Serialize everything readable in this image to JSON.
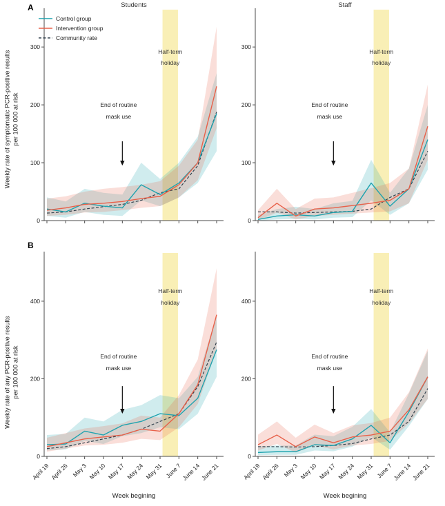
{
  "figure": {
    "panel_a_label": "A",
    "panel_b_label": "B",
    "legend": [
      {
        "key": "control",
        "label": "Control group"
      },
      {
        "key": "intervention",
        "label": "Intervention group"
      },
      {
        "key": "community",
        "label": "Community rate"
      }
    ],
    "annotations": {
      "mask_line1": "End of routine",
      "mask_line2": "mask use",
      "holiday_line1": "Half-term",
      "holiday_line2": "holiday"
    },
    "colors": {
      "control": "#1fa3af",
      "intervention": "#e8614a",
      "community": "#33424e",
      "holiday_band": "#f9efb6",
      "axis": "#4a4a4a",
      "text": "#222222"
    }
  },
  "chart_data": [
    {
      "id": "a_students",
      "type": "line",
      "title": "Students",
      "ylabel": "Weekly rate of symptomatic PCR-positive results per 100 000 at risk",
      "xlabel": "",
      "categories": [
        "April 19",
        "April 26",
        "May 3",
        "May 10",
        "May 17",
        "May 24",
        "May 31",
        "June 7",
        "June 14",
        "June 21"
      ],
      "ylim": [
        0,
        355
      ],
      "yticks": [
        0,
        100,
        200,
        300
      ],
      "holiday_span_index": [
        6.13,
        6.95
      ],
      "mask_annotation_index": 4,
      "series": [
        {
          "key": "control",
          "name": "Control group",
          "values": [
            20,
            15,
            30,
            25,
            22,
            62,
            45,
            65,
            100,
            185
          ],
          "lower": [
            8,
            5,
            15,
            10,
            8,
            35,
            25,
            40,
            65,
            120
          ],
          "upper": [
            40,
            33,
            55,
            48,
            45,
            100,
            72,
            100,
            145,
            255
          ]
        },
        {
          "key": "intervention",
          "name": "Intervention group",
          "values": [
            18,
            22,
            28,
            30,
            33,
            38,
            42,
            62,
            100,
            232
          ],
          "lower": [
            8,
            10,
            14,
            15,
            18,
            22,
            25,
            40,
            70,
            160
          ],
          "upper": [
            38,
            42,
            50,
            55,
            58,
            62,
            68,
            95,
            140,
            335
          ]
        },
        {
          "key": "community",
          "name": "Community rate",
          "style": "dashed",
          "values": [
            13,
            15,
            20,
            24,
            28,
            35,
            48,
            55,
            95,
            188
          ]
        }
      ]
    },
    {
      "id": "a_staff",
      "type": "line",
      "title": "Staff",
      "ylabel": "Weekly rate of symptomatic PCR-positive results per 100 000 at risk",
      "xlabel": "",
      "categories": [
        "April 19",
        "April 26",
        "May 3",
        "May 10",
        "May 17",
        "May 24",
        "May 31",
        "June 7",
        "June 14",
        "June 21"
      ],
      "ylim": [
        0,
        355
      ],
      "yticks": [
        0,
        100,
        200,
        300
      ],
      "holiday_span_index": [
        6.13,
        6.95
      ],
      "mask_annotation_index": 4,
      "series": [
        {
          "key": "control",
          "name": "Control group",
          "values": [
            2,
            8,
            10,
            8,
            14,
            16,
            65,
            25,
            55,
            140
          ],
          "lower": [
            0,
            2,
            3,
            2,
            5,
            6,
            35,
            10,
            30,
            88
          ],
          "upper": [
            10,
            20,
            24,
            20,
            30,
            34,
            105,
            48,
            90,
            200
          ]
        },
        {
          "key": "intervention",
          "name": "Intervention group",
          "values": [
            5,
            30,
            8,
            20,
            22,
            26,
            30,
            35,
            55,
            163
          ],
          "lower": [
            0,
            14,
            2,
            8,
            10,
            12,
            14,
            16,
            30,
            105
          ],
          "upper": [
            18,
            55,
            20,
            38,
            40,
            48,
            56,
            65,
            90,
            235
          ]
        },
        {
          "key": "community",
          "name": "Community rate",
          "style": "dashed",
          "values": [
            15,
            15,
            13,
            14,
            15,
            16,
            20,
            40,
            55,
            120
          ]
        }
      ]
    },
    {
      "id": "b_students",
      "type": "line",
      "title": "Students",
      "ylabel": "Weekly rate of any PCR-positive results per 100 000 at risk",
      "xlabel": "Week begining",
      "categories": [
        "April 19",
        "April 26",
        "May 3",
        "May 10",
        "May 17",
        "May 24",
        "May 31",
        "June 7",
        "June 14",
        "June 21"
      ],
      "ylim": [
        0,
        510
      ],
      "yticks": [
        0,
        200,
        400
      ],
      "holiday_span_index": [
        6.13,
        6.95
      ],
      "mask_annotation_index": 4,
      "series": [
        {
          "key": "control",
          "name": "Control group",
          "values": [
            30,
            32,
            65,
            55,
            80,
            90,
            110,
            105,
            150,
            275
          ],
          "lower": [
            15,
            18,
            40,
            32,
            52,
            60,
            75,
            70,
            110,
            205
          ],
          "upper": [
            55,
            58,
            100,
            90,
            120,
            132,
            158,
            150,
            205,
            365
          ]
        },
        {
          "key": "intervention",
          "name": "Intervention group",
          "values": [
            25,
            35,
            45,
            50,
            55,
            70,
            65,
            110,
            185,
            365
          ],
          "lower": [
            12,
            20,
            28,
            30,
            35,
            45,
            42,
            75,
            135,
            275
          ],
          "upper": [
            48,
            60,
            72,
            78,
            85,
            105,
            100,
            158,
            250,
            485
          ]
        },
        {
          "key": "community",
          "name": "Community rate",
          "style": "dashed",
          "values": [
            20,
            25,
            35,
            45,
            55,
            70,
            90,
            110,
            180,
            295
          ]
        }
      ]
    },
    {
      "id": "b_staff",
      "type": "line",
      "title": "Staff",
      "ylabel": "Weekly rate of any PCR-positive results per 100 000 at risk",
      "xlabel": "Week begining",
      "categories": [
        "April 19",
        "April 26",
        "May 3",
        "May 10",
        "May 17",
        "May 24",
        "May 31",
        "June 7",
        "June 14",
        "June 21"
      ],
      "ylim": [
        0,
        510
      ],
      "yticks": [
        0,
        200,
        400
      ],
      "holiday_span_index": [
        6.13,
        6.95
      ],
      "mask_annotation_index": 4,
      "series": [
        {
          "key": "control",
          "name": "Control group",
          "values": [
            10,
            12,
            12,
            30,
            28,
            45,
            80,
            35,
            115,
            205
          ],
          "lower": [
            3,
            4,
            4,
            15,
            13,
            25,
            50,
            17,
            78,
            148
          ],
          "upper": [
            26,
            28,
            28,
            56,
            52,
            76,
            122,
            62,
            162,
            272
          ]
        },
        {
          "key": "intervention",
          "name": "Intervention group",
          "values": [
            30,
            55,
            25,
            50,
            35,
            50,
            55,
            65,
            120,
            205
          ],
          "lower": [
            15,
            32,
            10,
            28,
            18,
            28,
            32,
            40,
            85,
            148
          ],
          "upper": [
            56,
            90,
            48,
            82,
            60,
            80,
            86,
            100,
            165,
            278
          ]
        },
        {
          "key": "community",
          "name": "Community rate",
          "style": "dashed",
          "values": [
            25,
            25,
            24,
            25,
            28,
            33,
            45,
            55,
            90,
            175
          ]
        }
      ]
    }
  ]
}
